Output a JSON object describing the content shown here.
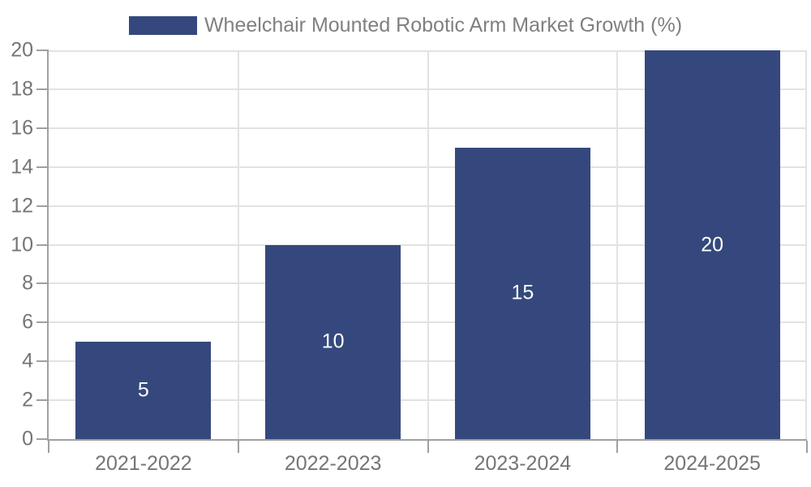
{
  "chart_data": {
    "type": "bar",
    "legend": {
      "label": "Wheelchair Mounted Robotic Arm Market Growth (%)",
      "position": "top-center"
    },
    "categories": [
      "2021-2022",
      "2022-2023",
      "2023-2024",
      "2024-2025"
    ],
    "values": [
      5,
      10,
      15,
      20
    ],
    "xlabel": "",
    "ylabel": "",
    "ylim": [
      0,
      20
    ],
    "yticks": [
      0,
      2,
      4,
      6,
      8,
      10,
      12,
      14,
      16,
      18,
      20
    ],
    "grid": true,
    "value_labels_inside_bars": true,
    "colors": {
      "bar": "#35487d",
      "grid_line": "#e2e2e2",
      "axis_line": "#a0a0a0",
      "tick_label": "#757575",
      "legend_label": "#808080",
      "value_label": "#ffffff",
      "background": "#ffffff"
    }
  }
}
